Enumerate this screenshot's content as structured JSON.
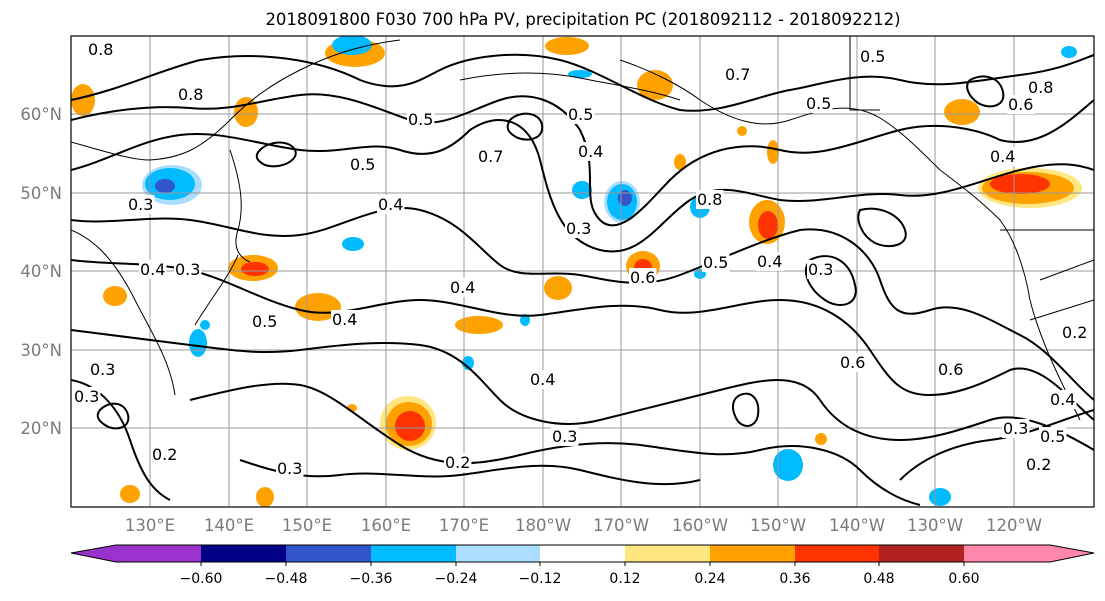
{
  "title": "2018091800 F030 700 hPa PV, precipitation PC (2018092112 - 2018092212)",
  "map": {
    "lat_labels": [
      "60°N",
      "50°N",
      "40°N",
      "30°N",
      "20°N"
    ],
    "lon_labels": [
      "130°E",
      "140°E",
      "150°E",
      "160°E",
      "170°E",
      "180°W",
      "170°W",
      "160°W",
      "150°W",
      "140°W",
      "130°W",
      "120°W"
    ],
    "gridline_color": "#9a9a9a",
    "coastline_color": "#000000"
  },
  "pv_contour_labels": [
    "0.8",
    "0.8",
    "0.5",
    "0.5",
    "0.5",
    "0.5",
    "0.7",
    "0.7",
    "0.5",
    "0.4",
    "0.3",
    "0.4",
    "0.3",
    "0.4",
    "0.5",
    "0.4",
    "0.6",
    "0.8",
    "0.5",
    "0.4",
    "0.3",
    "0.4",
    "0.6",
    "0.6",
    "0.4",
    "0.3",
    "0.2",
    "0.3",
    "0.2",
    "0.3",
    "0.4",
    "0.5",
    "0.2",
    "0.8",
    "0.6",
    "0.4",
    "0.3",
    "0.2",
    "0.3",
    "0.3"
  ],
  "colorbar": {
    "ticks": [
      "−0.60",
      "−0.48",
      "−0.36",
      "−0.24",
      "−0.12",
      "0.12",
      "0.24",
      "0.36",
      "0.48",
      "0.60"
    ],
    "colors": [
      "#9933cc",
      "#000088",
      "#3355cc",
      "#00bbff",
      "#aaddff",
      "#ffffff",
      "#ffe680",
      "#ffa200",
      "#ff3300",
      "#b22222",
      "#ff88aa"
    ]
  },
  "shading_colors": {
    "neg_light": "#aaddff",
    "neg_mid": "#00bbff",
    "neg_strong": "#3355cc",
    "pos_light": "#ffe680",
    "pos_mid": "#ffa200",
    "pos_strong": "#ff3300"
  }
}
